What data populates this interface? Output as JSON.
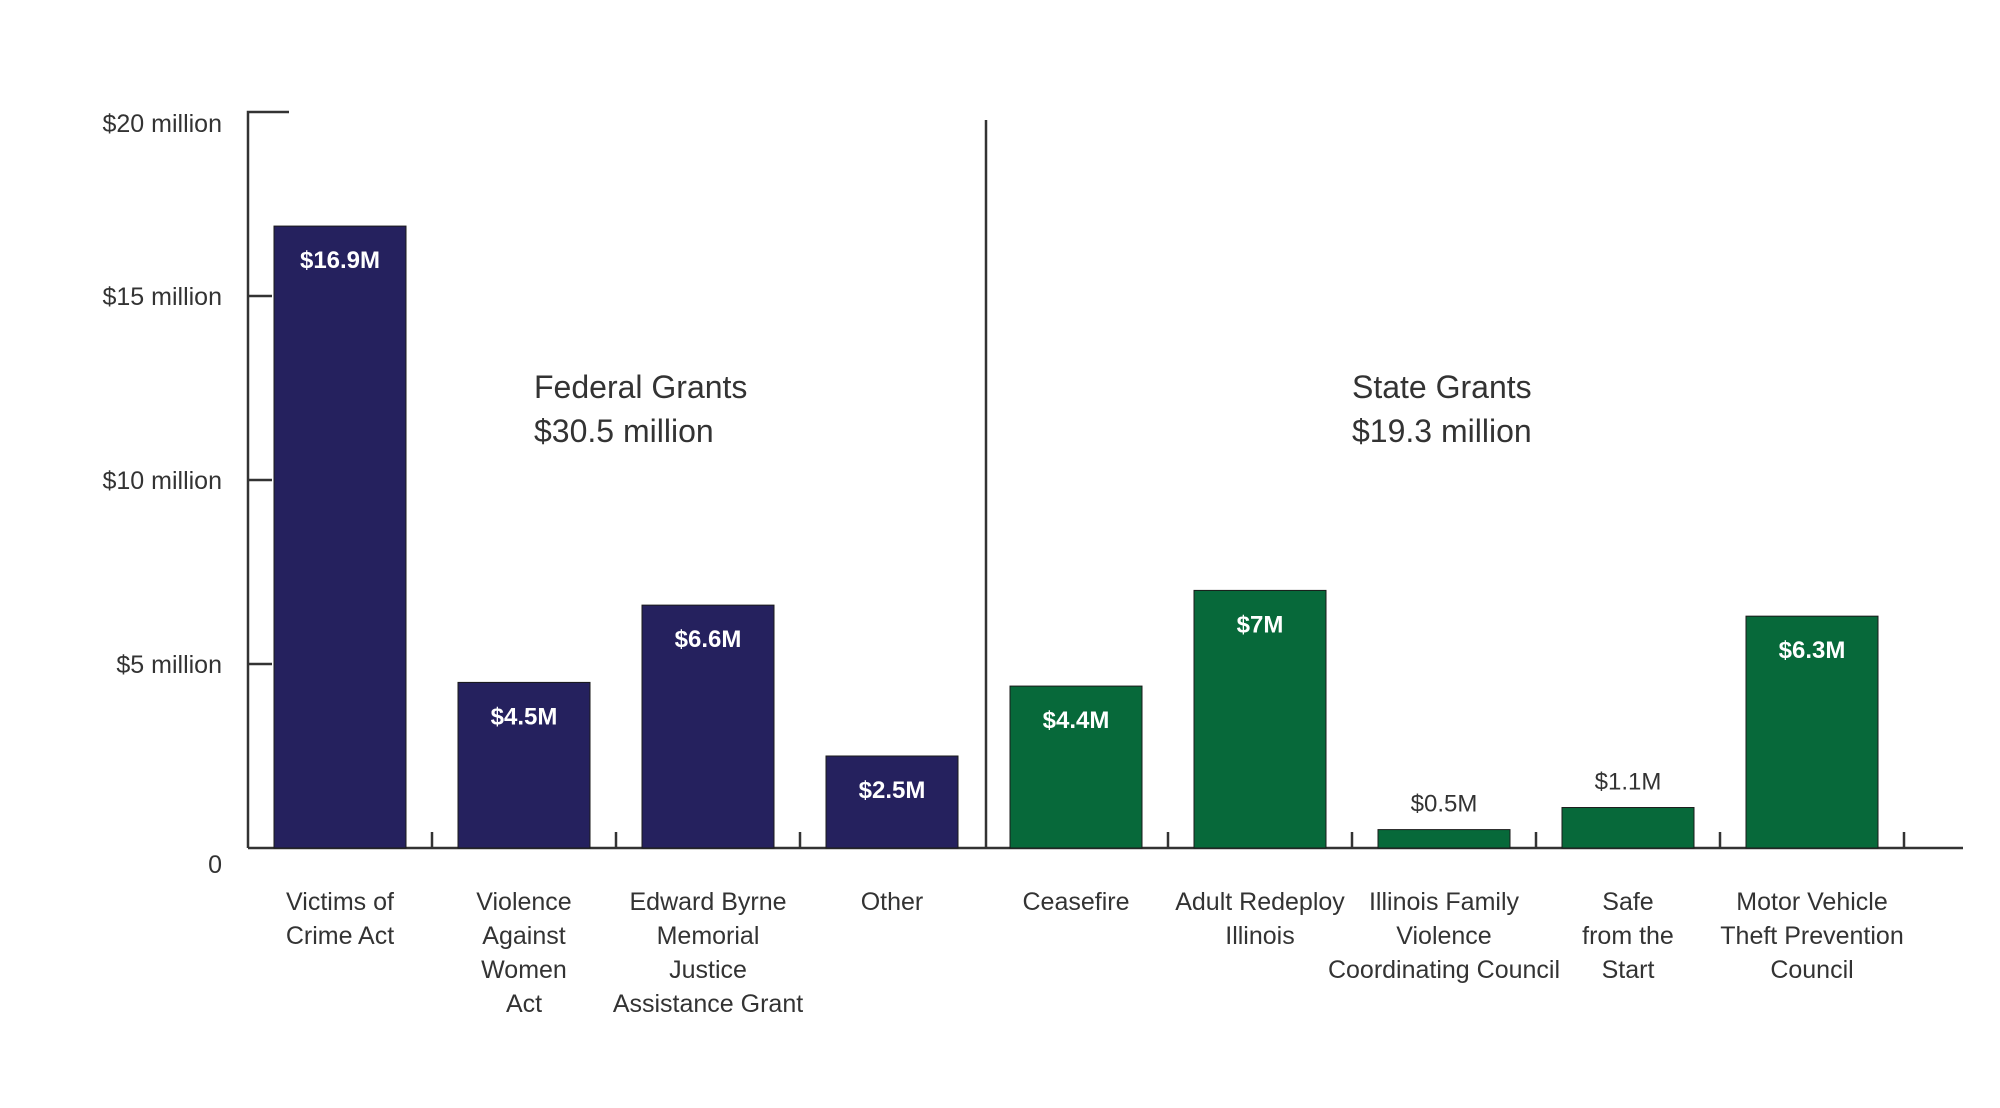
{
  "chart_data": {
    "type": "bar",
    "y_unit": "millions of dollars",
    "ylim": [
      0,
      20
    ],
    "y_ticks": [
      {
        "value": 0,
        "label": "0"
      },
      {
        "value": 5,
        "label": "$5 million"
      },
      {
        "value": 10,
        "label": "$10 million"
      },
      {
        "value": 15,
        "label": "$15 million"
      },
      {
        "value": 20,
        "label": "$20 million"
      }
    ],
    "grid": false,
    "legend": "none",
    "groups": [
      {
        "title_lines": [
          "Federal Grants",
          "$30.5 million"
        ],
        "color": "#25215e",
        "bars": [
          {
            "label_lines": [
              "Victims of",
              "Crime Act"
            ],
            "value": 16.9,
            "value_label": "$16.9M"
          },
          {
            "label_lines": [
              "Violence",
              "Against",
              "Women",
              "Act"
            ],
            "value": 4.5,
            "value_label": "$4.5M"
          },
          {
            "label_lines": [
              "Edward Byrne",
              "Memorial",
              "Justice",
              "Assistance Grant"
            ],
            "value": 6.6,
            "value_label": "$6.6M"
          },
          {
            "label_lines": [
              "Other"
            ],
            "value": 2.5,
            "value_label": "$2.5M"
          }
        ]
      },
      {
        "title_lines": [
          "State Grants",
          "$19.3 million"
        ],
        "color": "#07693a",
        "bars": [
          {
            "label_lines": [
              "Ceasefire"
            ],
            "value": 4.4,
            "value_label": "$4.4M"
          },
          {
            "label_lines": [
              "Adult Redeploy",
              "Illinois"
            ],
            "value": 7.0,
            "value_label": "$7M"
          },
          {
            "label_lines": [
              "Illinois Family",
              "Violence",
              "Coordinating Council"
            ],
            "value": 0.5,
            "value_label": "$0.5M"
          },
          {
            "label_lines": [
              "Safe",
              "from the",
              "Start"
            ],
            "value": 1.1,
            "value_label": "$1.1M"
          },
          {
            "label_lines": [
              "Motor Vehicle",
              "Theft Prevention",
              "Council"
            ],
            "value": 6.3,
            "value_label": "$6.3M"
          }
        ]
      }
    ]
  }
}
